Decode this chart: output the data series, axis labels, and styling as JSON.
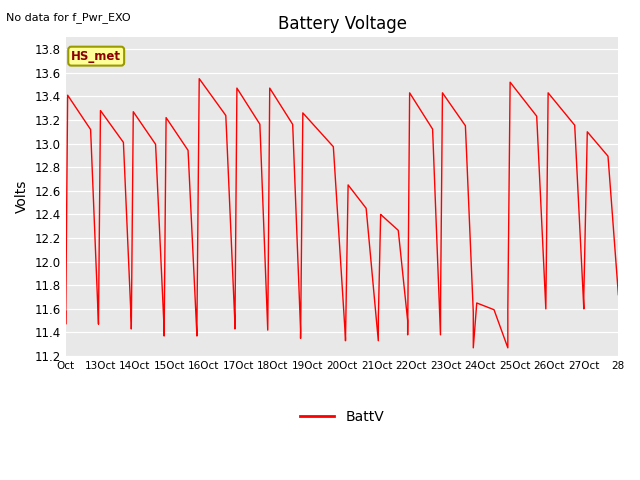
{
  "title": "Battery Voltage",
  "ylabel": "Volts",
  "no_data_text": "No data for f_Pwr_EXO",
  "hs_met_label": "HS_met",
  "legend_label": "BattV",
  "line_color": "#ff0000",
  "ylim": [
    11.2,
    13.9
  ],
  "bg_color": "#e8e8e8",
  "fig_color": "#ffffff",
  "x_tick_labels": [
    "Oct",
    "13Oct",
    "14Oct",
    "15Oct",
    "16Oct",
    "17Oct",
    "18Oct",
    "19Oct",
    "20Oct",
    "21Oct",
    "22Oct",
    "23Oct",
    "24Oct",
    "25Oct",
    "26Oct",
    "27Oct",
    "28"
  ],
  "x_ticks": [
    0,
    1,
    2,
    3,
    4,
    5,
    6,
    7,
    8,
    9,
    10,
    11,
    12,
    13,
    14,
    15,
    16
  ],
  "yticks": [
    11.2,
    11.4,
    11.6,
    11.8,
    12.0,
    12.2,
    12.4,
    12.6,
    12.8,
    13.0,
    13.2,
    13.4,
    13.6,
    13.8
  ]
}
